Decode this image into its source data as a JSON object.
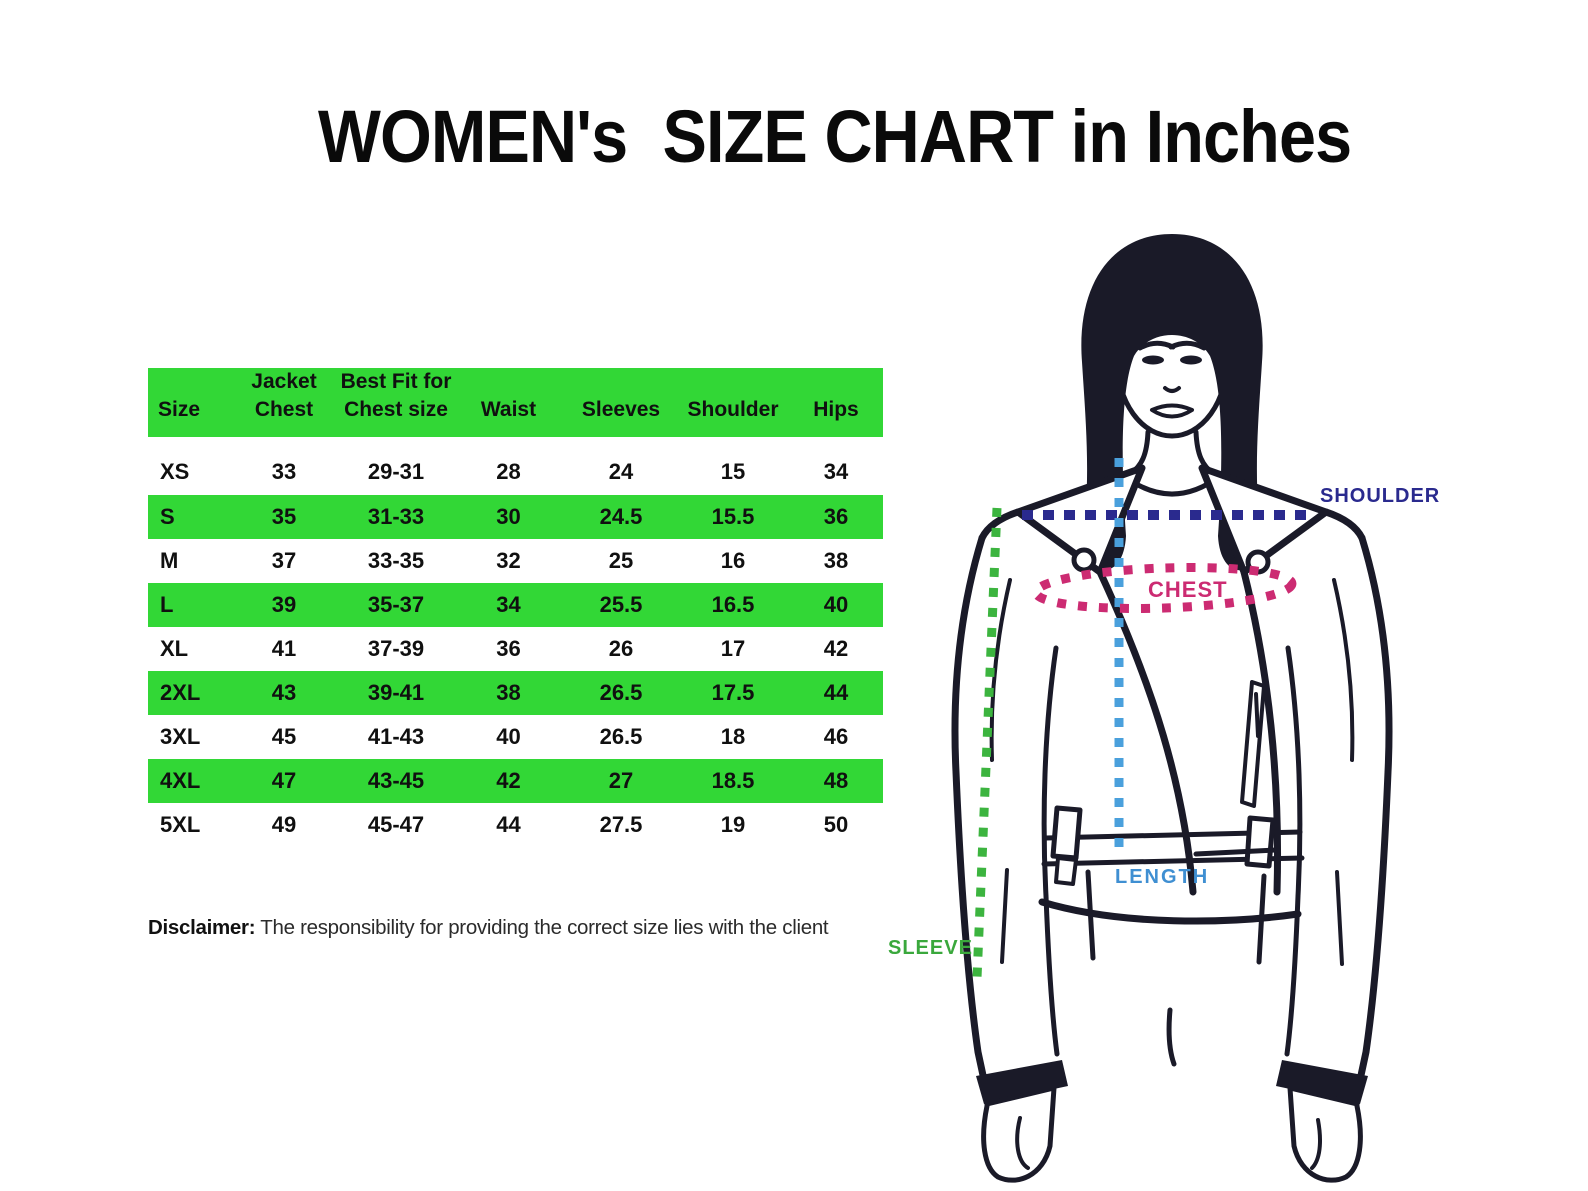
{
  "title": "WOMEN's  SIZE CHART in Inches",
  "table": {
    "headers": {
      "size": "Size",
      "jacket_chest": "Jacket Chest",
      "best_fit_line1": "Best Fit for",
      "best_fit_line2": "Chest size",
      "waist": "Waist",
      "sleeves": "Sleeves",
      "shoulder": "Shoulder",
      "hips": "Hips"
    },
    "rows": [
      {
        "size": "XS",
        "jacket_chest": "33",
        "best_fit": "29-31",
        "waist": "28",
        "sleeves": "24",
        "shoulder": "15",
        "hips": "34",
        "highlight": false
      },
      {
        "size": "S",
        "jacket_chest": "35",
        "best_fit": "31-33",
        "waist": "30",
        "sleeves": "24.5",
        "shoulder": "15.5",
        "hips": "36",
        "highlight": true
      },
      {
        "size": "M",
        "jacket_chest": "37",
        "best_fit": "33-35",
        "waist": "32",
        "sleeves": "25",
        "shoulder": "16",
        "hips": "38",
        "highlight": false
      },
      {
        "size": "L",
        "jacket_chest": "39",
        "best_fit": "35-37",
        "waist": "34",
        "sleeves": "25.5",
        "shoulder": "16.5",
        "hips": "40",
        "highlight": true
      },
      {
        "size": "XL",
        "jacket_chest": "41",
        "best_fit": "37-39",
        "waist": "36",
        "sleeves": "26",
        "shoulder": "17",
        "hips": "42",
        "highlight": false
      },
      {
        "size": "2XL",
        "jacket_chest": "43",
        "best_fit": "39-41",
        "waist": "38",
        "sleeves": "26.5",
        "shoulder": "17.5",
        "hips": "44",
        "highlight": true
      },
      {
        "size": "3XL",
        "jacket_chest": "45",
        "best_fit": "41-43",
        "waist": "40",
        "sleeves": "26.5",
        "shoulder": "18",
        "hips": "46",
        "highlight": false
      },
      {
        "size": "4XL",
        "jacket_chest": "47",
        "best_fit": "43-45",
        "waist": "42",
        "sleeves": "27",
        "shoulder": "18.5",
        "hips": "48",
        "highlight": true
      },
      {
        "size": "5XL",
        "jacket_chest": "49",
        "best_fit": "45-47",
        "waist": "44",
        "sleeves": "27.5",
        "shoulder": "19",
        "hips": "50",
        "highlight": false
      }
    ]
  },
  "disclaimer": {
    "label": "Disclaimer:",
    "text": "The responsibility for providing the correct size lies with the client"
  },
  "figure_labels": {
    "shoulder": "SHOULDER",
    "chest": "CHEST",
    "length": "LENGTH",
    "sleeve": "SLEEVE"
  },
  "colors": {
    "row_highlight_green": "#32d736",
    "shoulder_line_navy": "#2a2a8e",
    "chest_line_magenta": "#cc2b72",
    "length_line_blue": "#4aa0dc",
    "length_label_blue": "#3f8fd2",
    "sleeve_line_green": "#3cb43f",
    "sleeve_label_green": "#3aa83c"
  }
}
